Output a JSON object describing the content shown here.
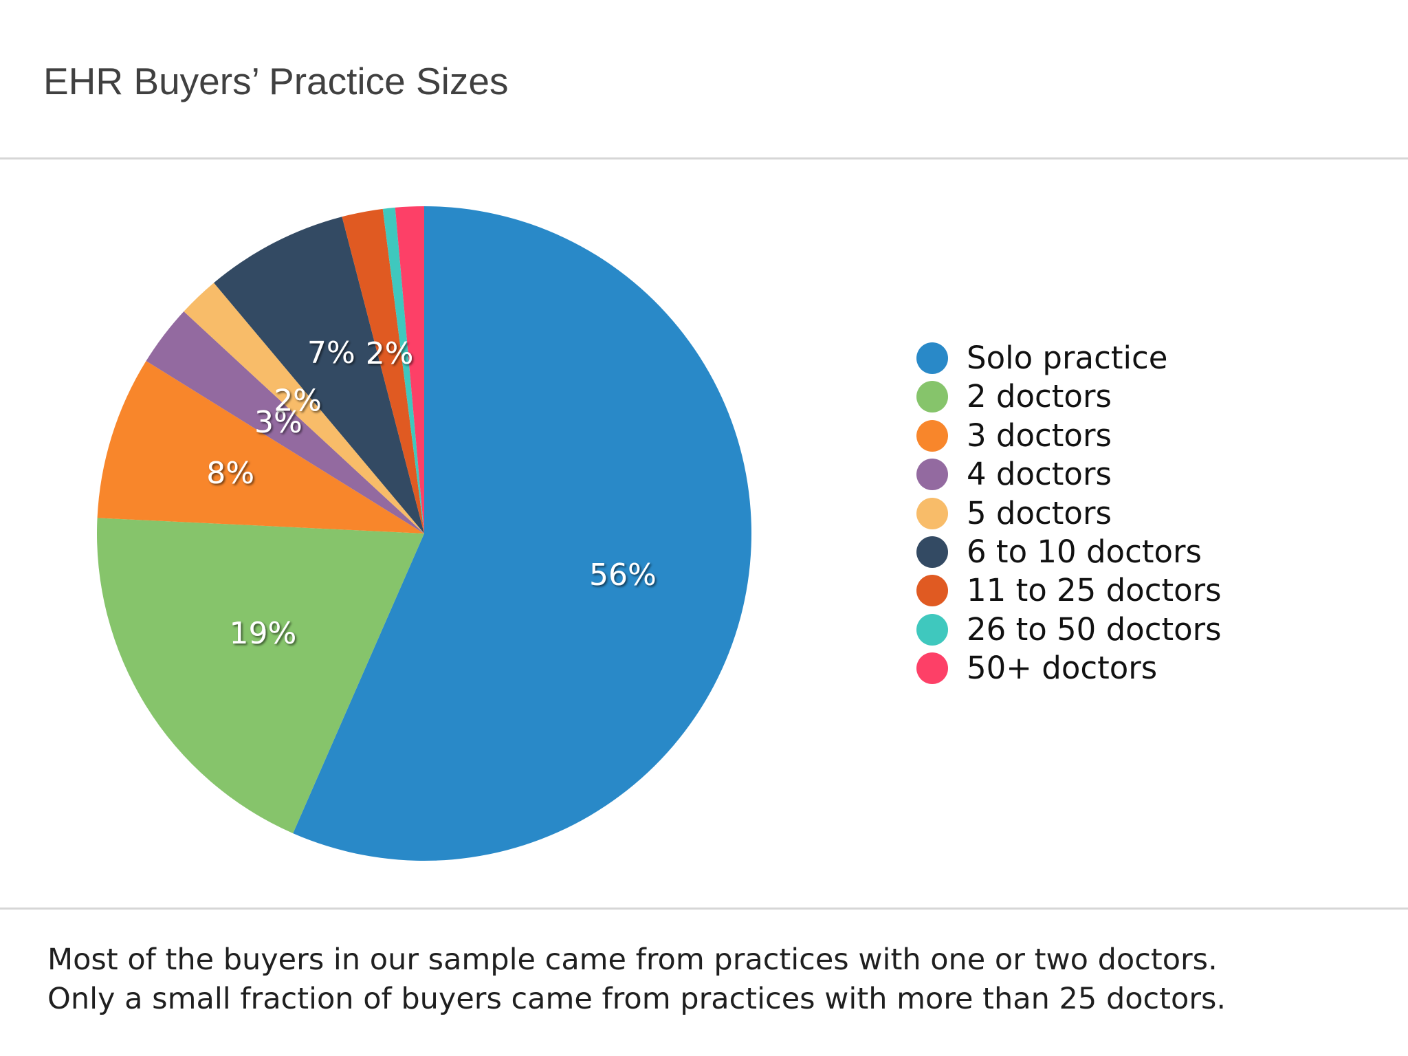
{
  "chart_data": {
    "type": "pie",
    "title": "EHR Buyers’ Practice Sizes",
    "categories": [
      "Solo practice",
      "2 doctors",
      "3 doctors",
      "4 doctors",
      "5 doctors",
      "6 to 10 doctors",
      "11 to 25 doctors",
      "26 to 50 doctors",
      "50+ doctors"
    ],
    "values": [
      56,
      19,
      8,
      3,
      2,
      7,
      2,
      0.6,
      1.4
    ],
    "labels": [
      "56%",
      "19%",
      "8%",
      "3%",
      "2%",
      "7%",
      "2%",
      "",
      ""
    ],
    "colors": [
      "#2989c8",
      "#86c46b",
      "#f8862b",
      "#936aa0",
      "#f8bc69",
      "#334a63",
      "#e05a22",
      "#3fc8be",
      "#fd4067"
    ],
    "legend_position": "right"
  },
  "caption": {
    "line1": "Most of the buyers in our sample came from practices with one or two doctors.",
    "line2": "Only a small fraction of buyers came from practices with more than 25 doctors."
  }
}
